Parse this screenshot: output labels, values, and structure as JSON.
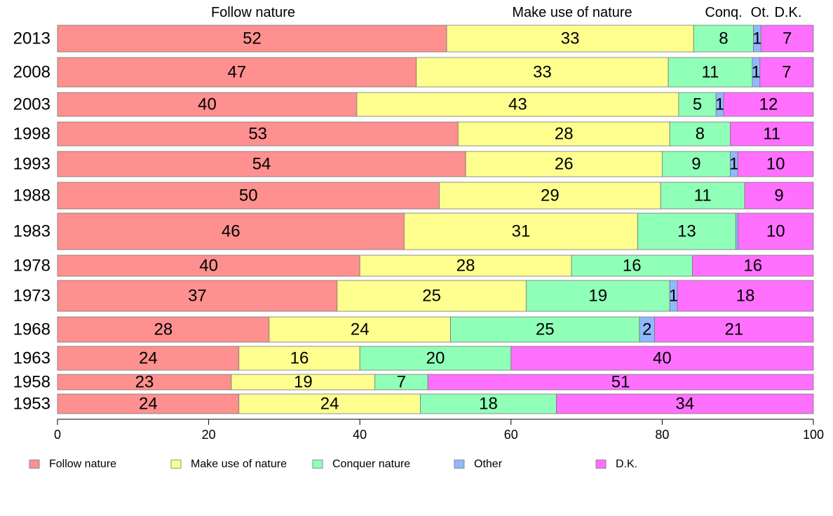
{
  "chart_data": {
    "type": "bar",
    "orientation": "horizontal",
    "stacked": true,
    "categories": [
      "2013",
      "2008",
      "2003",
      "1998",
      "1993",
      "1988",
      "1983",
      "1978",
      "1973",
      "1968",
      "1963",
      "1958",
      "1953"
    ],
    "series": [
      {
        "name": "Follow nature",
        "color": "#ff9090",
        "values": [
          52,
          47,
          40,
          53,
          54,
          50,
          46,
          40,
          37,
          28,
          24,
          23,
          24
        ]
      },
      {
        "name": "Make use of nature",
        "color": "#ffff90",
        "values": [
          33,
          33,
          43,
          28,
          26,
          29,
          31,
          28,
          25,
          24,
          16,
          19,
          24
        ]
      },
      {
        "name": "Conquer nature",
        "color": "#90ffb8",
        "values": [
          8,
          11,
          5,
          8,
          9,
          11,
          13,
          16,
          19,
          25,
          20,
          7,
          18
        ]
      },
      {
        "name": "Other",
        "color": "#90b8ff",
        "values": [
          1,
          1,
          1,
          0,
          1,
          0,
          0.3,
          0,
          1,
          2,
          0,
          0,
          0
        ]
      },
      {
        "name": "D.K.",
        "color": "#ff70ff",
        "values": [
          7,
          7,
          12,
          11,
          10,
          9,
          10,
          16,
          18,
          21,
          40,
          51,
          34
        ]
      }
    ],
    "segment_labels": [
      [
        "52",
        "33",
        "8",
        "1",
        "7"
      ],
      [
        "47",
        "33",
        "11",
        "1",
        "7"
      ],
      [
        "40",
        "43",
        "5",
        "1",
        "12"
      ],
      [
        "53",
        "28",
        "8",
        "",
        "11"
      ],
      [
        "54",
        "26",
        "9",
        "1",
        "10"
      ],
      [
        "50",
        "29",
        "11",
        "",
        "9"
      ],
      [
        "46",
        "31",
        "13",
        "",
        "10"
      ],
      [
        "40",
        "28",
        "16",
        "",
        "16"
      ],
      [
        "37",
        "25",
        "19",
        "1",
        "18"
      ],
      [
        "28",
        "24",
        "25",
        "2",
        "21"
      ],
      [
        "24",
        "16",
        "20",
        "",
        "40"
      ],
      [
        "23",
        "19",
        "7",
        "",
        "51"
      ],
      [
        "24",
        "24",
        "18",
        "",
        "34"
      ]
    ],
    "top_labels": [
      "Follow nature",
      "Make use of nature",
      "Conq.",
      "Ot.",
      "D.K."
    ],
    "x_ticks": [
      "0",
      "20",
      "40",
      "60",
      "80",
      "100"
    ],
    "xlim": [
      0,
      100
    ],
    "legend": [
      "Follow nature",
      "Make use of nature",
      "Conquer nature",
      "Other",
      "D.K."
    ],
    "legend_position": "bottom",
    "grid": false
  }
}
